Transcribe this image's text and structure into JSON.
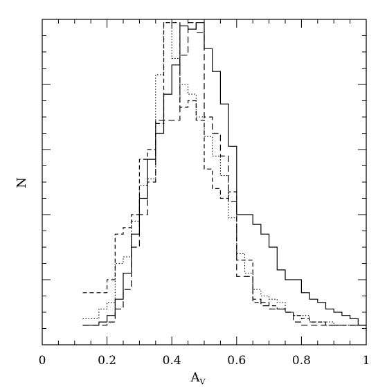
{
  "chart_data": {
    "type": "line",
    "step": true,
    "xlabel": "A",
    "xlabel_subscript": "V",
    "ylabel": "N",
    "xlim": [
      0,
      1
    ],
    "ylim": [
      0,
      1
    ],
    "xticks": [
      "0",
      "0.2",
      "0.4",
      "0.6",
      "0.8",
      "1"
    ],
    "xtick_values": [
      0,
      0.2,
      0.4,
      0.6,
      0.8,
      1
    ],
    "y_tick_labels_shown": false,
    "grid": false,
    "bin_edges": [
      0.125,
      0.15,
      0.175,
      0.2,
      0.225,
      0.25,
      0.275,
      0.3,
      0.325,
      0.35,
      0.375,
      0.4,
      0.425,
      0.45,
      0.475,
      0.5,
      0.525,
      0.55,
      0.575,
      0.6,
      0.625,
      0.65,
      0.675,
      0.7,
      0.725,
      0.75,
      0.775,
      0.8,
      0.825,
      0.85,
      0.875,
      0.9,
      0.925,
      0.95,
      0.975,
      1.0
    ],
    "series": [
      {
        "style": "solid",
        "values": [
          0.06,
          0.06,
          0.07,
          0.09,
          0.14,
          0.22,
          0.34,
          0.45,
          0.57,
          0.65,
          0.77,
          0.86,
          0.98,
          0.97,
          0.99,
          0.91,
          0.84,
          0.74,
          0.61,
          0.4,
          0.4,
          0.37,
          0.34,
          0.3,
          0.23,
          0.2,
          0.2,
          0.16,
          0.14,
          0.13,
          0.11,
          0.1,
          0.09,
          0.08,
          0.06
        ]
      },
      {
        "style": "long-dash",
        "values": [
          0.06,
          0.06,
          0.06,
          0.07,
          0.11,
          0.17,
          0.3,
          0.4,
          0.5,
          0.69,
          0.69,
          0.69,
          0.89,
          0.99,
          0.96,
          0.7,
          0.65,
          0.58,
          0.44,
          0.21,
          0.21,
          0.14,
          0.12,
          0.11,
          0.11,
          0.1,
          0.07,
          0.06,
          0.06,
          0.06,
          0.06,
          0.06,
          0.06,
          0.06,
          0.06
        ]
      },
      {
        "style": "dotted",
        "values": [
          0.08,
          0.08,
          0.11,
          0.13,
          0.25,
          0.27,
          0.38,
          0.49,
          0.51,
          0.83,
          0.99,
          0.88,
          0.8,
          0.77,
          0.7,
          0.64,
          0.58,
          0.52,
          0.39,
          0.28,
          0.22,
          0.17,
          0.15,
          0.14,
          0.13,
          0.1,
          0.09,
          0.09,
          0.07,
          0.07,
          0.07,
          0.06,
          0.06,
          0.06,
          0.06
        ]
      },
      {
        "style": "short-dash",
        "values": [
          0.16,
          0.16,
          0.16,
          0.2,
          0.34,
          0.36,
          0.4,
          0.57,
          0.6,
          0.68,
          0.99,
          0.99,
          0.73,
          0.75,
          0.69,
          0.54,
          0.48,
          0.45,
          0.47,
          0.26,
          0.26,
          0.13,
          0.13,
          0.12,
          0.11,
          0.1,
          0.09,
          0.08,
          0.07,
          0.07,
          0.06,
          0.06,
          0.06,
          0.06,
          0.06
        ]
      }
    ]
  }
}
